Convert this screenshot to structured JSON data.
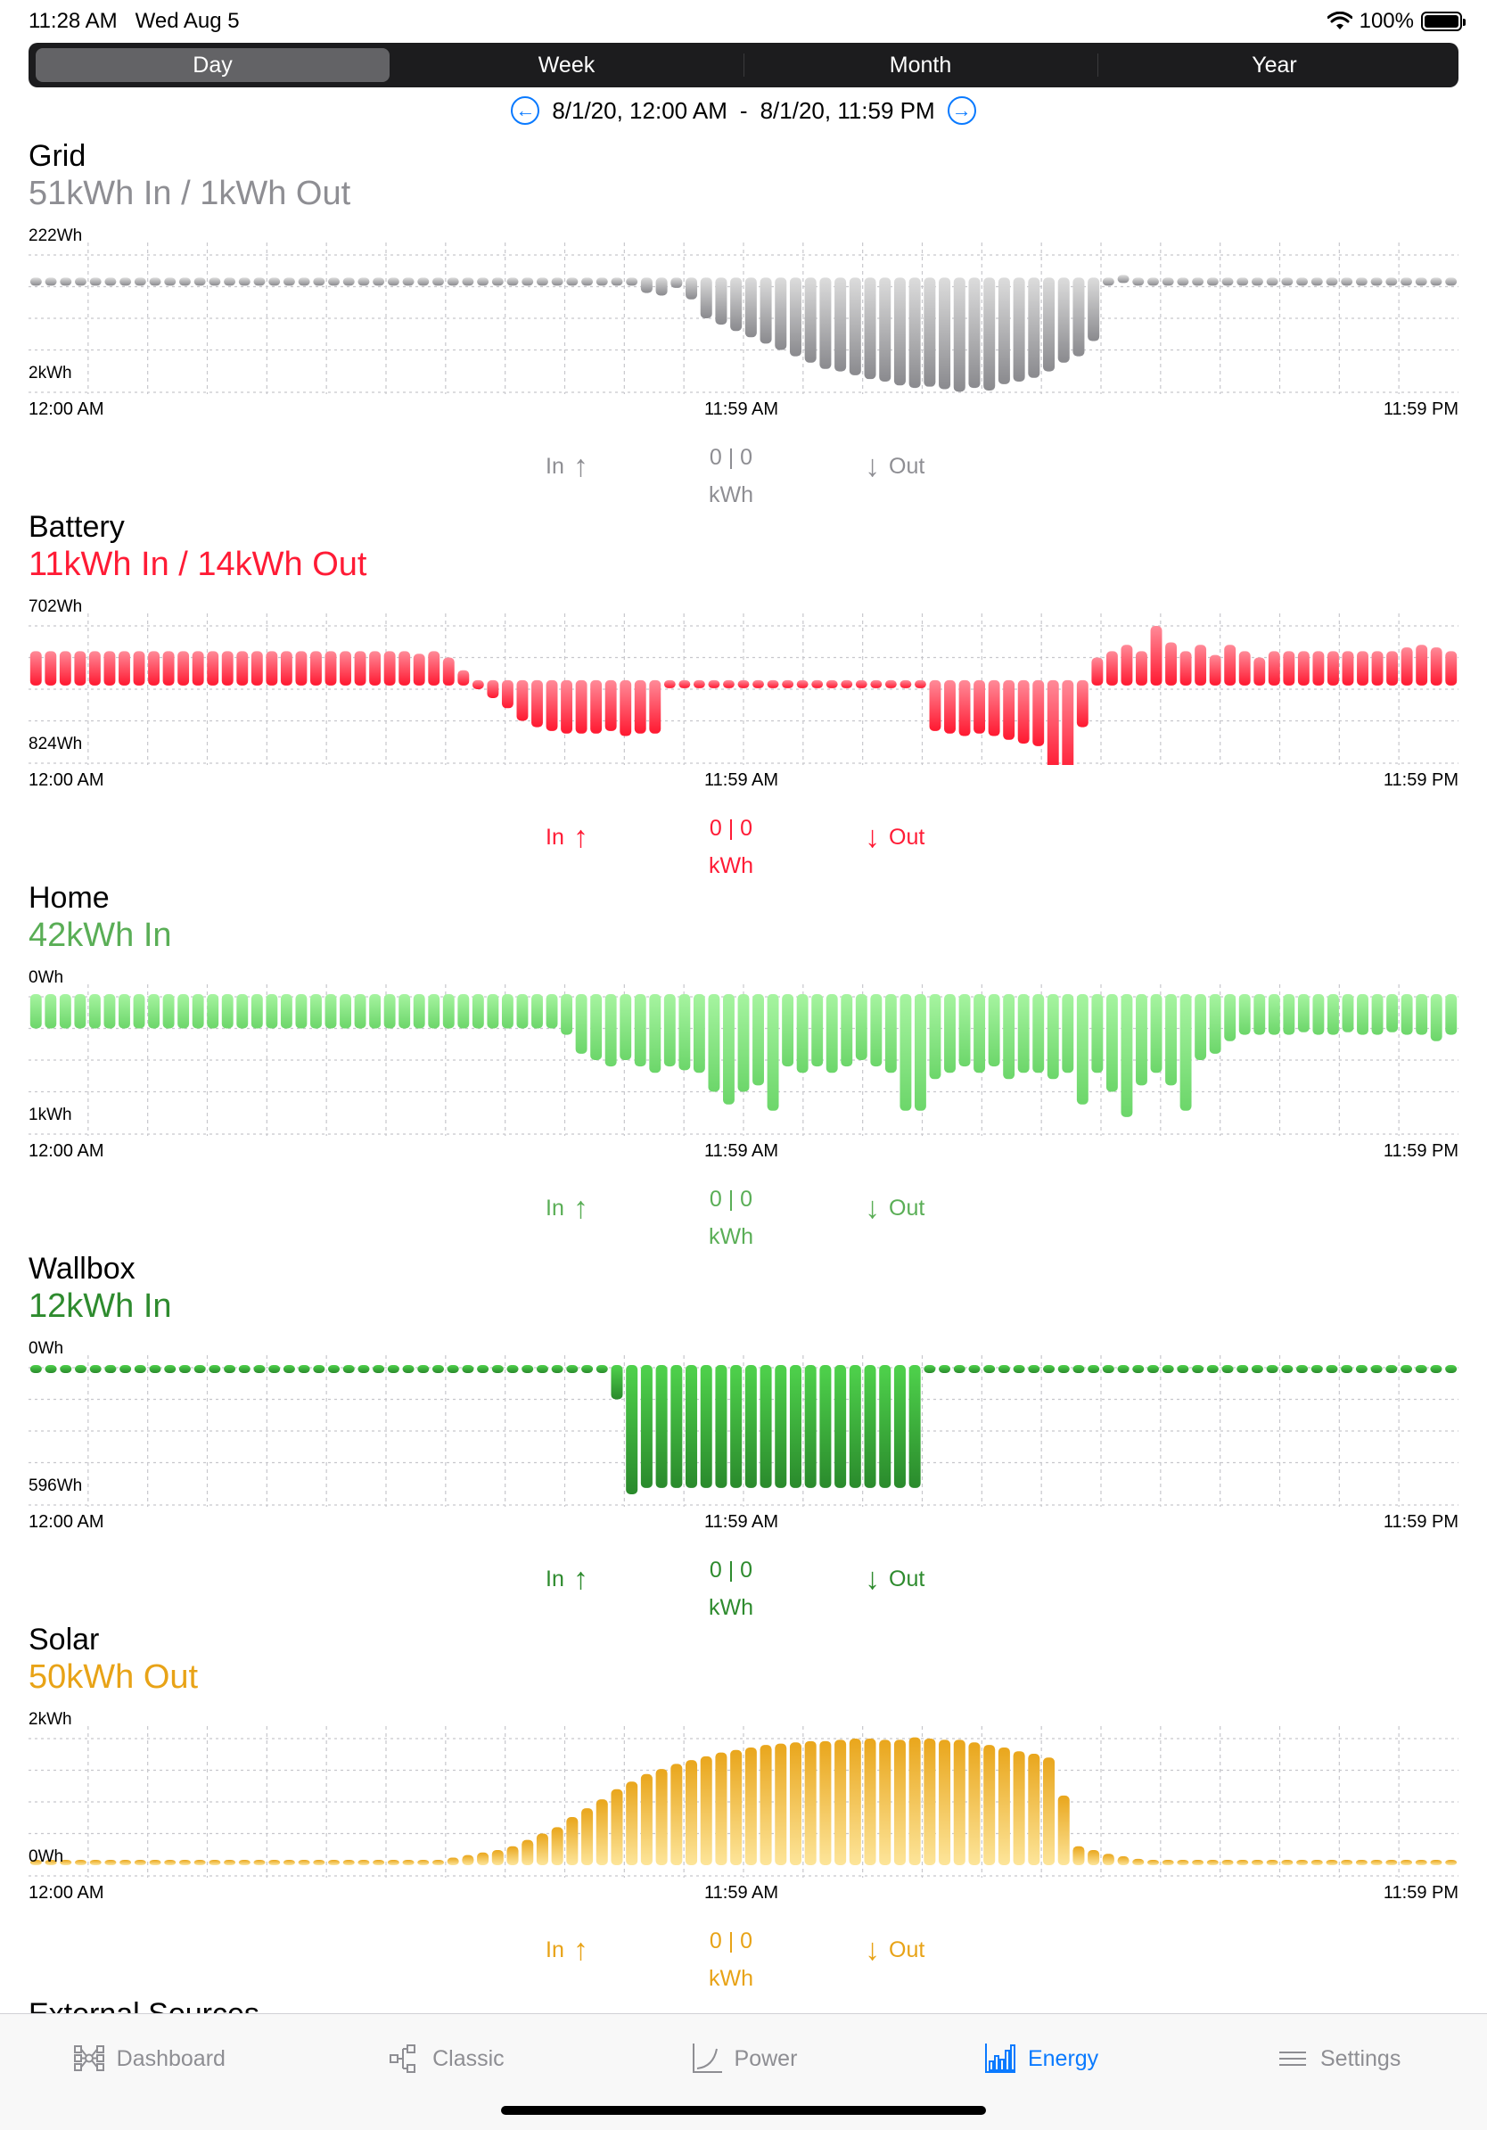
{
  "status": {
    "time": "11:28 AM",
    "date": "Wed Aug 5",
    "battery": "100%"
  },
  "segments": [
    "Day",
    "Week",
    "Month",
    "Year"
  ],
  "active_segment": 0,
  "range": {
    "start": "8/1/20, 12:00 AM",
    "dash": "-",
    "end": "8/1/20, 11:59 PM"
  },
  "sections": [
    {
      "id": "grid",
      "title": "Grid",
      "subtitle": "51kWh In / 1kWh Out",
      "color": "#8e8e93",
      "light": "#dcdcdc",
      "dark": "#8a8a8e",
      "sub_color": "#8e8e93",
      "max_label": "222Wh",
      "min_label": "2kWh",
      "time_labels": [
        "12:00 AM",
        "11:59 AM",
        "11:59 PM"
      ],
      "legend": {
        "in": "In",
        "out": "Out",
        "values": "0 | 0",
        "unit": "kWh"
      },
      "chart_data": {
        "type": "bar",
        "baseline": 0.2,
        "ylabels": [
          "222Wh",
          "2kWh"
        ],
        "values": [
          0,
          0,
          0,
          0,
          0,
          0,
          0,
          0,
          0,
          0,
          0,
          0,
          0,
          0,
          0,
          0,
          0,
          0,
          0,
          0,
          0,
          0,
          0,
          0,
          0,
          0,
          0,
          0,
          0,
          0,
          0,
          0,
          0,
          0,
          0,
          0,
          0,
          0.01,
          0.01,
          0.02,
          0.03,
          0.1,
          0.12,
          0.06,
          0.15,
          0.3,
          0.35,
          0.4,
          0.45,
          0.5,
          0.55,
          0.6,
          0.65,
          0.7,
          0.72,
          0.75,
          0.78,
          0.8,
          0.83,
          0.85,
          0.84,
          0.86,
          0.88,
          0.85,
          0.87,
          0.82,
          0.8,
          0.77,
          0.72,
          0.65,
          0.6,
          0.48,
          0.03,
          -0.03,
          0,
          0.01,
          0,
          0,
          0,
          0,
          0,
          0,
          0,
          0,
          0,
          0,
          0,
          0,
          0,
          0,
          0,
          0,
          0,
          0,
          0,
          0
        ]
      }
    },
    {
      "id": "battery",
      "title": "Battery",
      "subtitle": "11kWh In / 14kWh Out",
      "color": "#ff1b35",
      "light": "#ff8a98",
      "dark": "#ff1830",
      "sub_color": "#ff1b35",
      "max_label": "702Wh",
      "min_label": "824Wh",
      "time_labels": [
        "12:00 AM",
        "11:59 AM",
        "11:59 PM"
      ],
      "legend": {
        "in": "In",
        "out": "Out",
        "values": "0 | 0",
        "unit": "kWh"
      },
      "chart_data": {
        "type": "bar",
        "baseline": 0.45,
        "ylabels": [
          "702Wh",
          "824Wh"
        ],
        "values": [
          -0.25,
          -0.25,
          -0.25,
          -0.25,
          -0.25,
          -0.25,
          -0.25,
          -0.25,
          -0.25,
          -0.25,
          -0.25,
          -0.25,
          -0.25,
          -0.25,
          -0.25,
          -0.25,
          -0.25,
          -0.25,
          -0.25,
          -0.25,
          -0.25,
          -0.25,
          -0.25,
          -0.25,
          -0.25,
          -0.25,
          -0.23,
          -0.25,
          -0.2,
          -0.1,
          0.05,
          0.12,
          0.2,
          0.3,
          0.35,
          0.38,
          0.4,
          0.4,
          0.4,
          0.38,
          0.42,
          0.4,
          0.4,
          0.02,
          0,
          0,
          0,
          0,
          0,
          0,
          0,
          0,
          0,
          0,
          0,
          0,
          0,
          0,
          0,
          0,
          0,
          0.38,
          0.4,
          0.42,
          0.4,
          0.42,
          0.45,
          0.48,
          0.5,
          0.7,
          0.75,
          0.35,
          -0.2,
          -0.25,
          -0.3,
          -0.25,
          -0.45,
          -0.32,
          -0.25,
          -0.3,
          -0.22,
          -0.3,
          -0.25,
          -0.2,
          -0.25,
          -0.25,
          -0.25,
          -0.25,
          -0.25,
          -0.25,
          -0.25,
          -0.25,
          -0.25,
          -0.28,
          -0.3,
          -0.28,
          -0.25
        ]
      }
    },
    {
      "id": "home",
      "title": "Home",
      "subtitle": "42kWh In",
      "color": "#5cb85c",
      "light": "#a6f4a0",
      "dark": "#6cd66a",
      "sub_color": "#5aae56",
      "max_label": "0Wh",
      "min_label": "1kWh",
      "time_labels": [
        "12:00 AM",
        "11:59 AM",
        "11:59 PM"
      ],
      "legend": {
        "in": "In",
        "out": "Out",
        "values": "0 | 0",
        "unit": "kWh"
      },
      "chart_data": {
        "type": "bar",
        "baseline": 0.0,
        "ylabels": [
          "0Wh",
          "1kWh"
        ],
        "values": [
          0.25,
          0.25,
          0.25,
          0.25,
          0.25,
          0.25,
          0.25,
          0.25,
          0.25,
          0.25,
          0.25,
          0.25,
          0.25,
          0.25,
          0.25,
          0.25,
          0.25,
          0.25,
          0.25,
          0.25,
          0.25,
          0.25,
          0.25,
          0.25,
          0.25,
          0.25,
          0.25,
          0.25,
          0.25,
          0.25,
          0.25,
          0.25,
          0.25,
          0.25,
          0.25,
          0.25,
          0.3,
          0.45,
          0.5,
          0.55,
          0.5,
          0.55,
          0.6,
          0.55,
          0.58,
          0.6,
          0.75,
          0.85,
          0.75,
          0.7,
          0.9,
          0.55,
          0.6,
          0.55,
          0.6,
          0.55,
          0.5,
          0.55,
          0.6,
          0.9,
          0.9,
          0.65,
          0.6,
          0.55,
          0.6,
          0.55,
          0.65,
          0.6,
          0.6,
          0.65,
          0.6,
          0.85,
          0.6,
          0.75,
          0.95,
          0.7,
          0.6,
          0.7,
          0.9,
          0.5,
          0.45,
          0.35,
          0.3,
          0.3,
          0.3,
          0.3,
          0.28,
          0.3,
          0.3,
          0.28,
          0.3,
          0.3,
          0.28,
          0.3,
          0.3,
          0.35,
          0.3
        ]
      }
    },
    {
      "id": "wallbox",
      "title": "Wallbox",
      "subtitle": "12kWh In",
      "color": "#2e8b2e",
      "light": "#4fd24c",
      "dark": "#2a8a2c",
      "sub_color": "#2e8b2e",
      "max_label": "0Wh",
      "min_label": "596Wh",
      "time_labels": [
        "12:00 AM",
        "11:59 AM",
        "11:59 PM"
      ],
      "legend": {
        "in": "In",
        "out": "Out",
        "values": "0 | 0",
        "unit": "kWh"
      },
      "chart_data": {
        "type": "bar",
        "baseline": 0.0,
        "ylabels": [
          "0Wh",
          "596Wh"
        ],
        "values": [
          0,
          0,
          0,
          0,
          0,
          0,
          0,
          0,
          0,
          0,
          0,
          0,
          0,
          0,
          0,
          0,
          0,
          0,
          0,
          0,
          0,
          0,
          0,
          0,
          0,
          0,
          0,
          0,
          0,
          0,
          0,
          0,
          0,
          0,
          0,
          0,
          0,
          0,
          0,
          0.25,
          1.0,
          0.95,
          0.95,
          0.95,
          0.95,
          0.95,
          0.95,
          0.95,
          0.95,
          0.95,
          0.95,
          0.95,
          0.95,
          0.95,
          0.95,
          0.95,
          0.95,
          0.95,
          0.95,
          0.95,
          0,
          0,
          0,
          0,
          0,
          0,
          0,
          0,
          0,
          0,
          0,
          0,
          0,
          0,
          0,
          0,
          0,
          0,
          0,
          0,
          0,
          0,
          0,
          0,
          0,
          0,
          0,
          0,
          0,
          0,
          0,
          0,
          0,
          0,
          0,
          0
        ]
      }
    },
    {
      "id": "solar",
      "title": "Solar",
      "subtitle": "50kWh Out",
      "color": "#e8a317",
      "light": "#fde59a",
      "dark": "#e9a61c",
      "sub_color": "#e8a317",
      "max_label": "2kWh",
      "min_label": "0Wh",
      "time_labels": [
        "12:00 AM",
        "11:59 AM",
        "11:59 PM"
      ],
      "legend": {
        "in": "In",
        "out": "Out",
        "values": "0 | 0",
        "unit": "kWh"
      },
      "chart_data": {
        "type": "bar",
        "baseline": 1.0,
        "up": true,
        "ylabels": [
          "2kWh",
          "0Wh"
        ],
        "values": [
          0,
          0,
          0,
          0,
          0,
          0,
          0,
          0,
          0,
          0,
          0,
          0,
          0,
          0,
          0,
          0,
          0,
          0,
          0,
          0,
          0,
          0,
          0,
          0.005,
          0.01,
          0.02,
          0.03,
          0.04,
          0.06,
          0.08,
          0.1,
          0.12,
          0.15,
          0.2,
          0.25,
          0.3,
          0.38,
          0.45,
          0.52,
          0.6,
          0.66,
          0.72,
          0.76,
          0.8,
          0.83,
          0.86,
          0.89,
          0.91,
          0.93,
          0.95,
          0.96,
          0.97,
          0.98,
          0.98,
          0.99,
          1.0,
          1.0,
          0.99,
          0.99,
          1.01,
          1.0,
          0.99,
          0.99,
          0.97,
          0.95,
          0.93,
          0.9,
          0.88,
          0.85,
          0.55,
          0.15,
          0.12,
          0.09,
          0.07,
          0.05,
          0.04,
          0.03,
          0.02,
          0.015,
          0.01,
          0.008,
          0.005,
          0,
          0,
          0,
          0,
          0,
          0,
          0,
          0,
          0,
          0,
          0,
          0,
          0,
          0
        ]
      }
    }
  ],
  "external_sources_title": "External Sources",
  "tabs": [
    {
      "label": "Dashboard",
      "icon": "dashboard-icon"
    },
    {
      "label": "Classic",
      "icon": "classic-icon"
    },
    {
      "label": "Power",
      "icon": "power-icon"
    },
    {
      "label": "Energy",
      "icon": "energy-icon"
    },
    {
      "label": "Settings",
      "icon": "settings-icon"
    }
  ],
  "active_tab": 3
}
